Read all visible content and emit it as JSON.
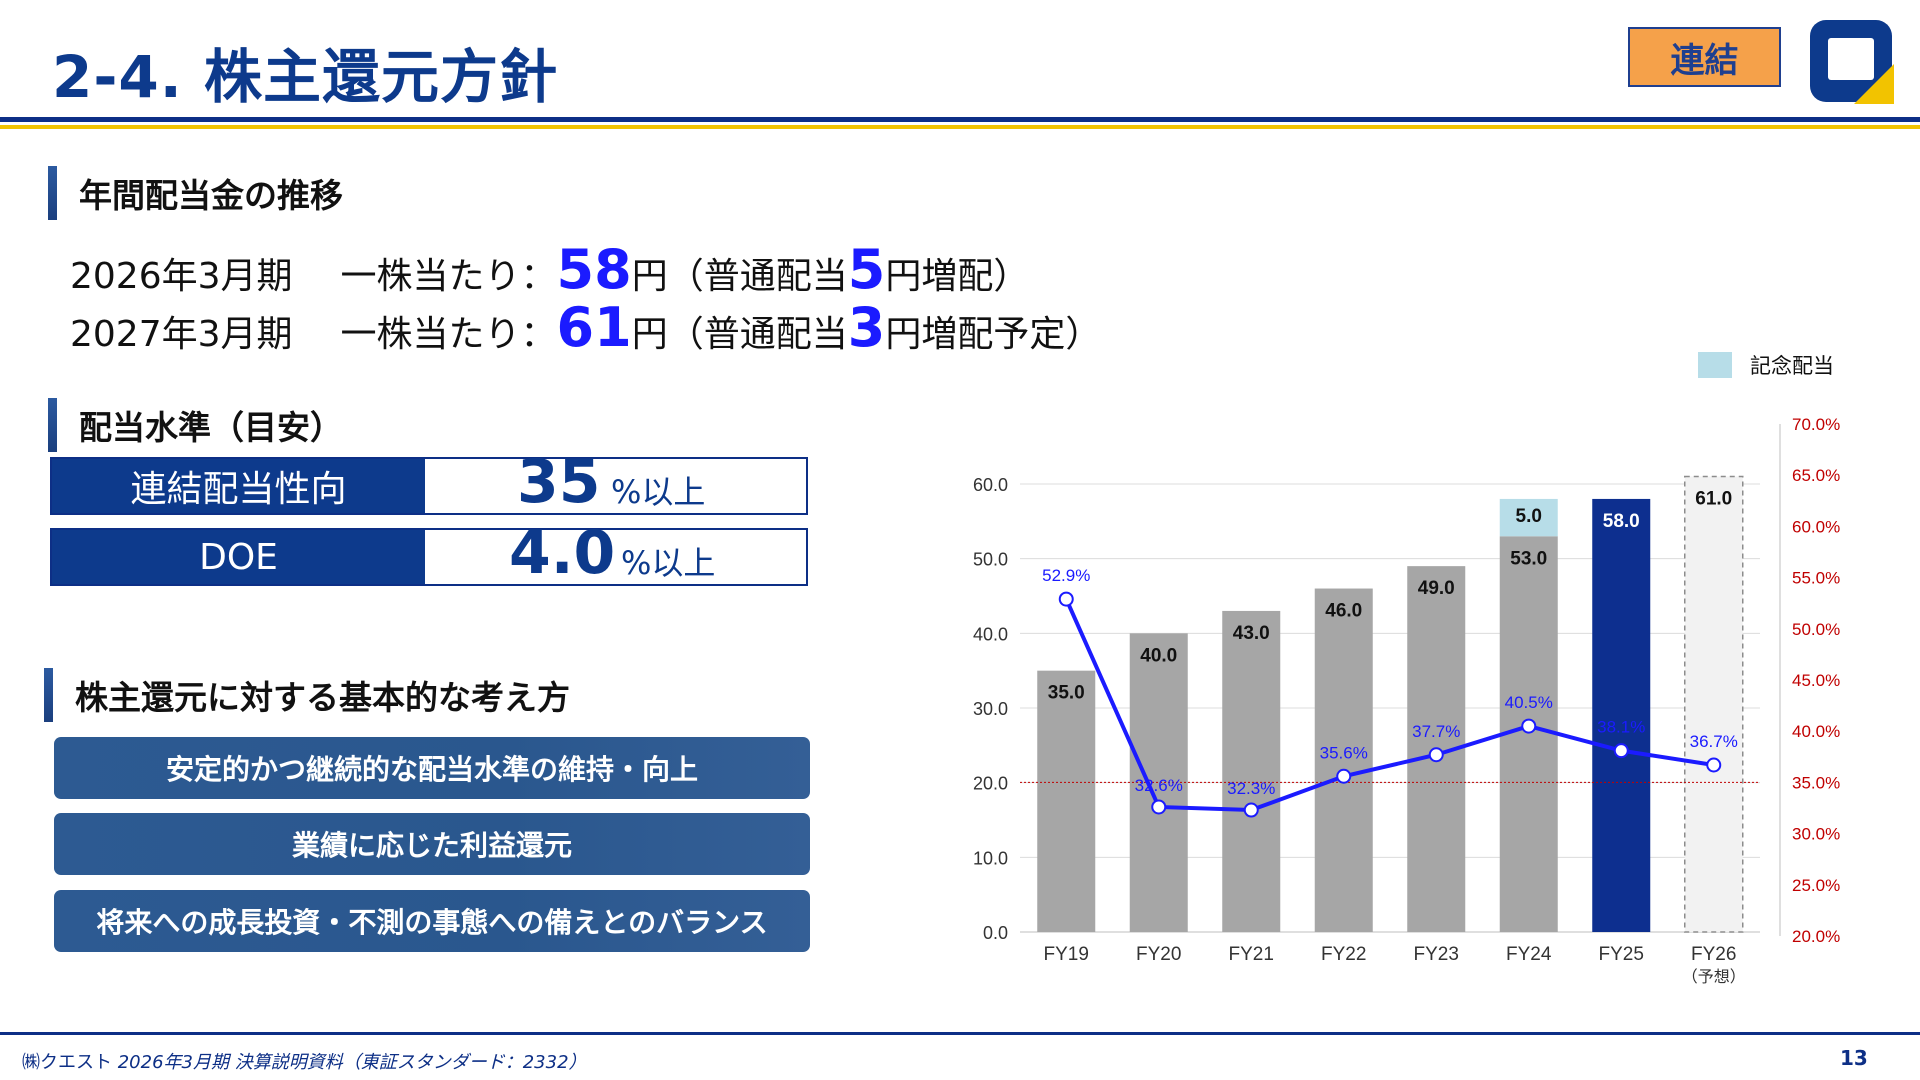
{
  "header": {
    "title": "2-4. 株主還元方針",
    "badge": "連結",
    "colors": {
      "title": "#0d3a8c",
      "badge_fill": "#f5a14a",
      "rule_blue": "#0d2f86",
      "rule_yellow": "#f2c300"
    }
  },
  "dividend_section": {
    "heading": "年間配当金の推移",
    "lines": [
      {
        "period": "2026年3月期",
        "prefix": "一株当たり：",
        "amount": "58",
        "yen": "円",
        "note_open": "（普通配当",
        "increase": "5",
        "note_close": "円増配）"
      },
      {
        "period": "2027年3月期",
        "prefix": "一株当たり：",
        "amount": "61",
        "yen": "円",
        "note_open": "（普通配当",
        "increase": "3",
        "note_close": "円増配予定）"
      }
    ]
  },
  "target_section": {
    "heading": "配当水準（目安）",
    "rows": [
      {
        "label": "連結配当性向",
        "value": "35",
        "unit": "%以上"
      },
      {
        "label": "DOE",
        "value": "4.0",
        "unit": "%以上"
      }
    ]
  },
  "policy_section": {
    "heading": "株主還元に対する基本的な考え方",
    "items": [
      "安定的かつ継続的な配当水準の維持・向上",
      "業績に応じた利益還元",
      "将来への成長投資・不測の事態への備えとのバランス"
    ]
  },
  "chart_data": {
    "type": "bar",
    "legend": {
      "label": "記念配当",
      "color": "#b7dde8",
      "placement": "top-right"
    },
    "categories": [
      "FY19",
      "FY20",
      "FY21",
      "FY22",
      "FY23",
      "FY24",
      "FY25",
      "FY26"
    ],
    "category_sublabels": [
      "",
      "",
      "",
      "",
      "",
      "",
      "",
      "（予想）"
    ],
    "series": [
      {
        "name": "",
        "values": [
          35.0,
          40.0,
          43.0,
          46.0,
          49.0,
          53.0,
          58.0,
          61.0
        ],
        "labels": [
          "35.0",
          "40.0",
          "43.0",
          "46.0",
          "49.0",
          "53.0",
          "58.0",
          "61.0"
        ]
      },
      {
        "name": "記念配当",
        "values": [
          0,
          0,
          0,
          0,
          0,
          5.0,
          0,
          0
        ],
        "labels": [
          "",
          "",
          "",
          "",
          "",
          "5.0",
          "",
          ""
        ]
      },
      {
        "name": "",
        "type": "line",
        "axis": "right",
        "values": [
          52.9,
          32.6,
          32.3,
          35.6,
          37.7,
          40.5,
          38.1,
          36.7
        ],
        "labels": [
          "52.9%",
          "32.6%",
          "32.3%",
          "35.6%",
          "37.7%",
          "40.5%",
          "38.1%",
          "36.7%"
        ]
      }
    ],
    "y_left": {
      "range": [
        0,
        60
      ],
      "ticks": [
        "0.0",
        "10.0",
        "20.0",
        "30.0",
        "40.0",
        "50.0",
        "60.0"
      ]
    },
    "y_right": {
      "range": [
        20,
        70
      ],
      "ticks": [
        "20.0%",
        "25.0%",
        "30.0%",
        "35.0%",
        "40.0%",
        "45.0%",
        "50.0%",
        "55.0%",
        "60.0%",
        "65.0%",
        "70.0%"
      ]
    },
    "reference_line": {
      "axis": "right",
      "value": 35.0,
      "color": "#c00000"
    },
    "colors": {
      "bar": "#a6a6a6",
      "bar_current": "#0d2f8f",
      "bar_forecast": "#f2f2f2",
      "commemorative": "#b7dde8",
      "line": "#1b1bff",
      "label_bar": "#111111",
      "label_line": "#1b1bff",
      "right_axis": "#c00000"
    },
    "grid": true
  },
  "footer": {
    "company": "㈱クエスト",
    "doc": "2026年3月期 決算説明資料（東証スタンダード：2332）",
    "page": "13"
  }
}
